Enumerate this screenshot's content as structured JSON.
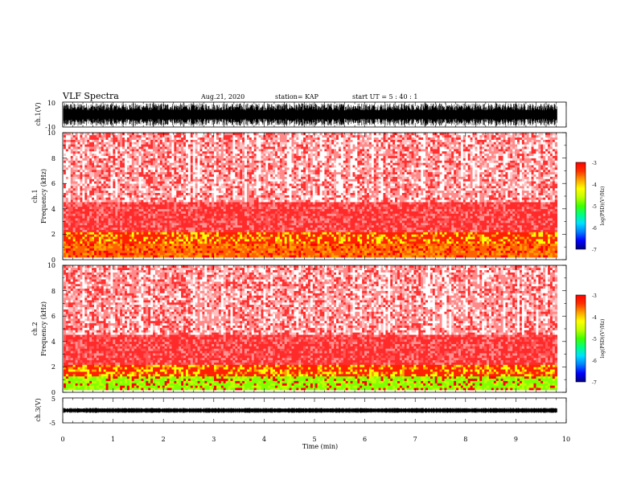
{
  "header": {
    "title": "VLF Spectra",
    "date": "Aug.21, 2020",
    "station": "station= KAP",
    "start": "start  UT  =   5  : 40 : 1"
  },
  "colors": {
    "colormap": [
      "#000080",
      "#0000ff",
      "#0080ff",
      "#00e0ff",
      "#00ff80",
      "#40ff00",
      "#c0ff00",
      "#ffff00",
      "#ffa000",
      "#ff3000",
      "#ff0000",
      "#ff8080",
      "#ffffff"
    ],
    "waveform": "#000000"
  },
  "chart_data": [
    {
      "type": "line",
      "name": "ch1-waveform",
      "ylabel": "ch.1(V)",
      "ylim": [
        -10,
        10
      ],
      "yticks": [
        "10",
        "-10"
      ],
      "xlim": [
        0,
        10
      ]
    },
    {
      "type": "heatmap",
      "name": "ch1-spectrogram",
      "ylabel": "ch.1",
      "ylabel2": "Frequency  (kHz)",
      "ylim": [
        0,
        10
      ],
      "yticks": [
        "10",
        "8",
        "6",
        "4",
        "2",
        "0"
      ],
      "xlim": [
        0,
        10
      ],
      "colorbar": {
        "label": "log(PSD)(V²/Hz)",
        "ticks": [
          "-3",
          "-4",
          "-5",
          "-6",
          "-7"
        ],
        "range": [
          -7,
          -3
        ]
      }
    },
    {
      "type": "heatmap",
      "name": "ch2-spectrogram",
      "ylabel": "ch.2",
      "ylabel2": "Frequency  (kHz)",
      "ylim": [
        0,
        10
      ],
      "yticks": [
        "10",
        "8",
        "6",
        "4",
        "2",
        "0"
      ],
      "xlim": [
        0,
        10
      ],
      "colorbar": {
        "label": "log(PSD)(V²/Hz)",
        "ticks": [
          "-3",
          "-4",
          "-5",
          "-6",
          "-7"
        ],
        "range": [
          -7,
          -3
        ]
      }
    },
    {
      "type": "line",
      "name": "ch3-waveform",
      "ylabel": "ch.3(V)",
      "ylim": [
        -5,
        5
      ],
      "yticks": [
        "5",
        "-5"
      ],
      "xlim": [
        0,
        10
      ]
    }
  ],
  "xaxis": {
    "label": "Time  (min)",
    "ticks": [
      "0",
      "1",
      "2",
      "3",
      "4",
      "5",
      "6",
      "7",
      "8",
      "9",
      "10"
    ],
    "data_end": 9.82
  }
}
